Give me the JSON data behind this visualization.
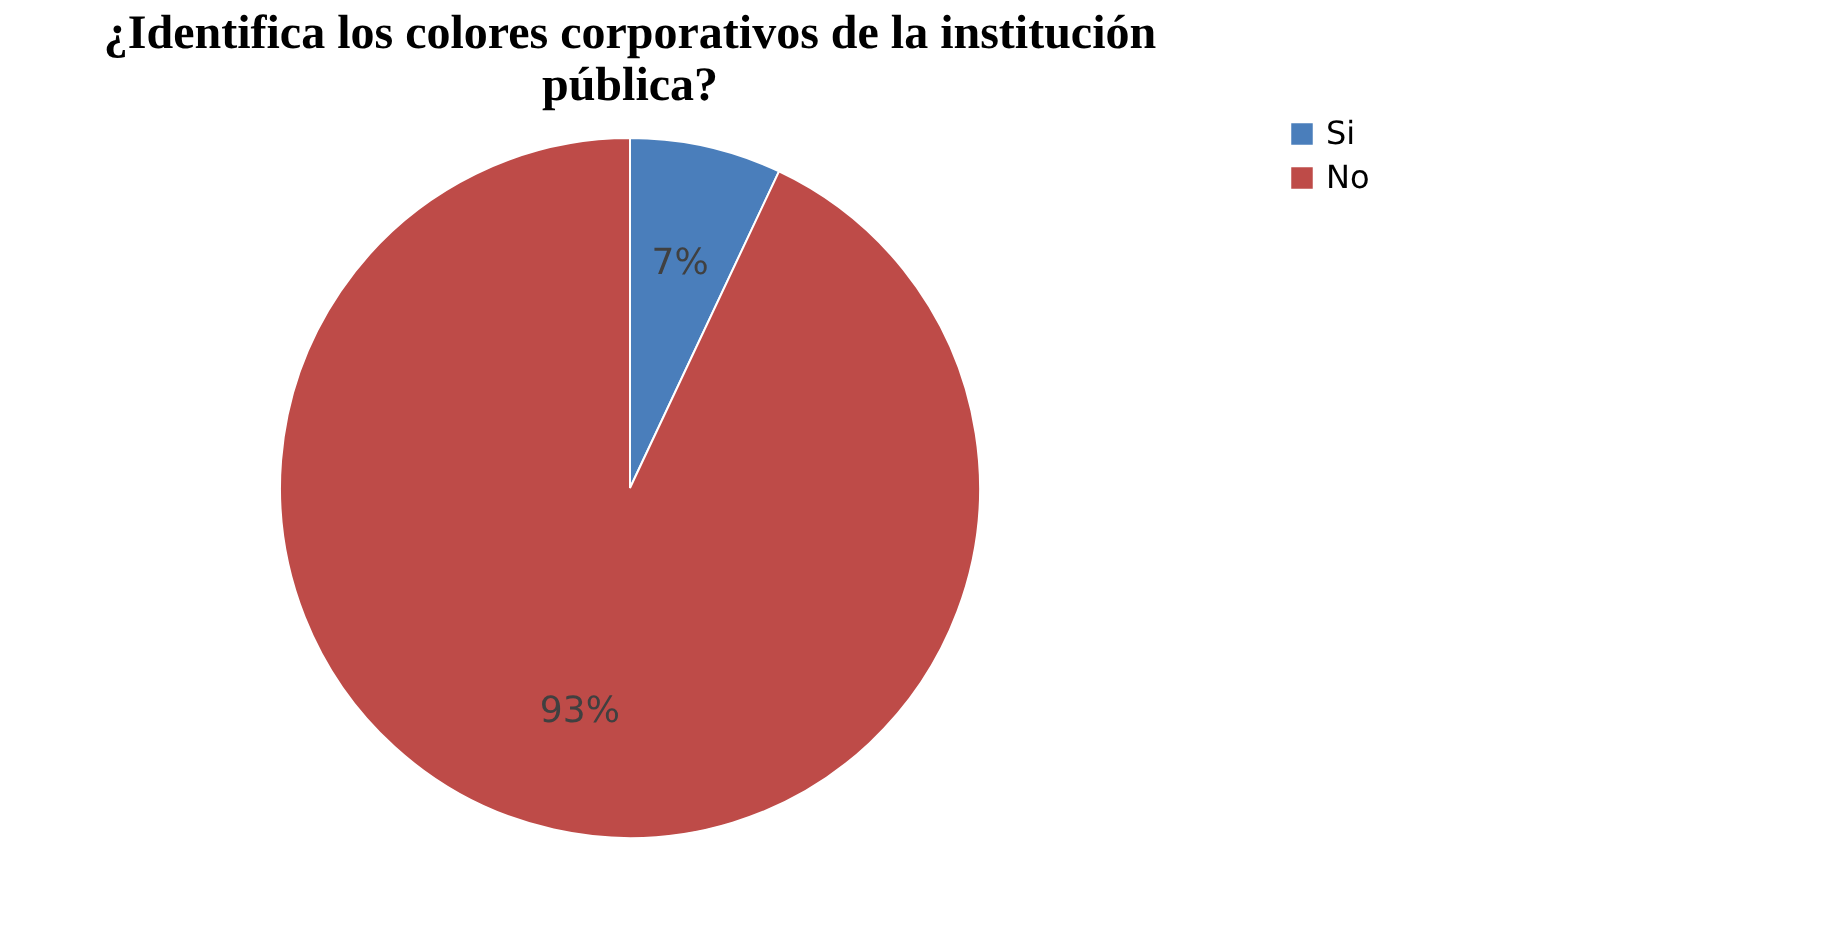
{
  "chart_data": {
    "type": "pie",
    "title": "¿Identifica los colores corporativos de la institución pública?",
    "categories": [
      "Si",
      "No"
    ],
    "values": [
      7,
      93
    ],
    "colors": [
      "#4a7ebb",
      "#be4b48"
    ],
    "value_labels": [
      "7%",
      "93%"
    ],
    "legend": "top right"
  }
}
